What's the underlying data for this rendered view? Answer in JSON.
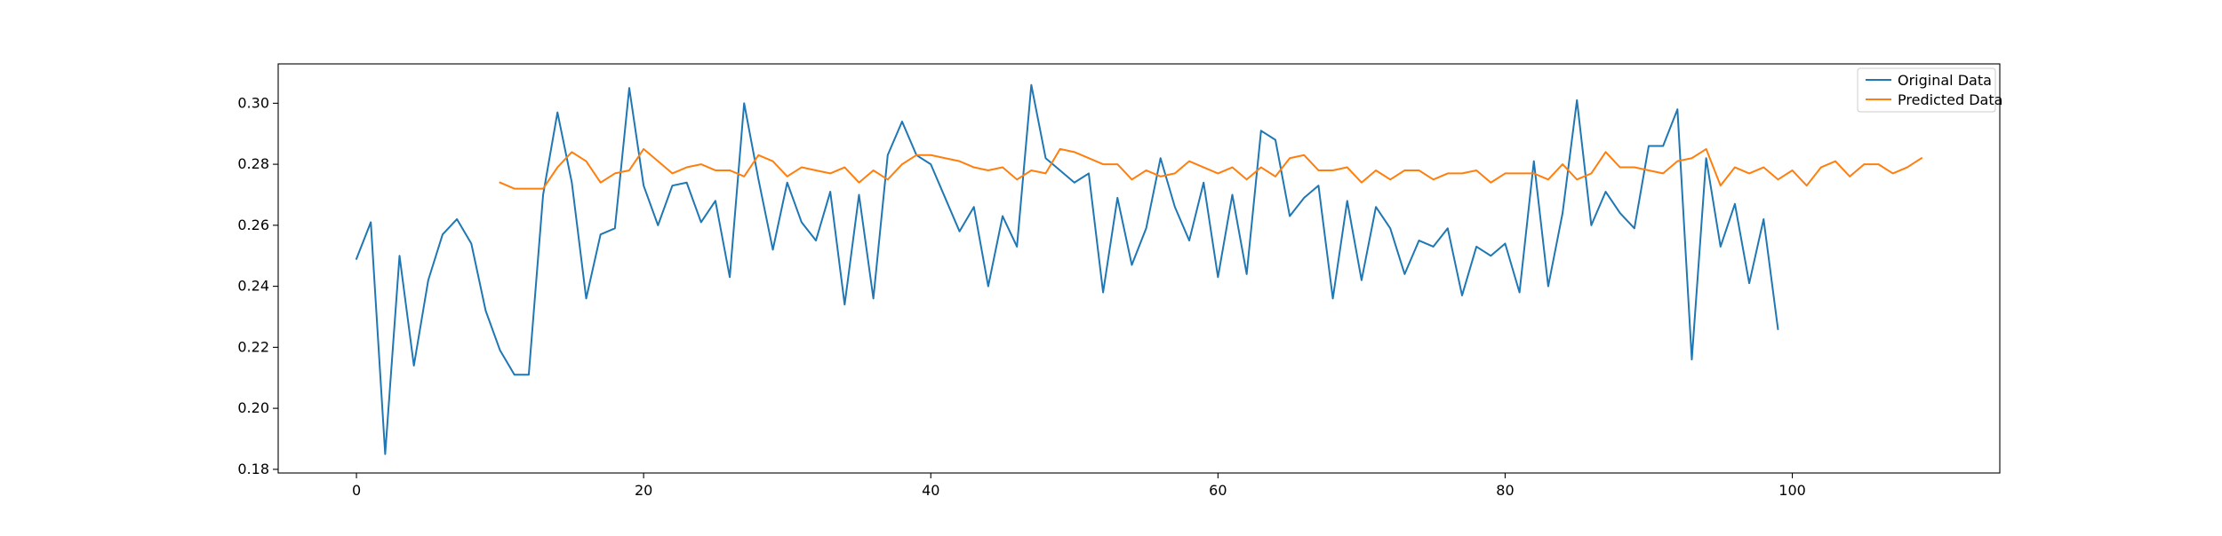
{
  "chart_data": {
    "type": "line",
    "title": "",
    "xlabel": "",
    "ylabel": "",
    "xlim": [
      -5.45,
      114.45
    ],
    "ylim": [
      0.1788,
      0.3129
    ],
    "xticks": [
      0,
      20,
      40,
      60,
      80,
      100
    ],
    "yticks": [
      0.18,
      0.2,
      0.22,
      0.24,
      0.26,
      0.28,
      0.3
    ],
    "ytick_labels": [
      "0.18",
      "0.20",
      "0.22",
      "0.24",
      "0.26",
      "0.28",
      "0.30"
    ],
    "grid": false,
    "legend": {
      "placement": "top-right"
    },
    "series": [
      {
        "name": "Original Data",
        "color": "#1f77b4",
        "x_start": 0,
        "values": [
          0.249,
          0.261,
          0.185,
          0.25,
          0.214,
          0.242,
          0.257,
          0.262,
          0.254,
          0.232,
          0.219,
          0.211,
          0.211,
          0.27,
          0.297,
          0.274,
          0.236,
          0.257,
          0.259,
          0.305,
          0.273,
          0.26,
          0.273,
          0.274,
          0.261,
          0.268,
          0.243,
          0.3,
          0.275,
          0.252,
          0.274,
          0.261,
          0.255,
          0.271,
          0.234,
          0.27,
          0.236,
          0.283,
          0.294,
          0.283,
          0.28,
          0.269,
          0.258,
          0.266,
          0.24,
          0.263,
          0.253,
          0.306,
          0.282,
          0.278,
          0.274,
          0.277,
          0.238,
          0.269,
          0.247,
          0.259,
          0.282,
          0.266,
          0.255,
          0.274,
          0.243,
          0.27,
          0.244,
          0.291,
          0.288,
          0.263,
          0.269,
          0.273,
          0.236,
          0.268,
          0.242,
          0.266,
          0.259,
          0.244,
          0.255,
          0.253,
          0.259,
          0.237,
          0.253,
          0.25,
          0.254,
          0.238,
          0.281,
          0.24,
          0.264,
          0.301,
          0.26,
          0.271,
          0.264,
          0.259,
          0.286,
          0.286,
          0.298,
          0.216,
          0.282,
          0.253,
          0.267,
          0.241,
          0.262,
          0.226
        ]
      },
      {
        "name": "Predicted Data",
        "color": "#ff7f0e",
        "x_start": 10,
        "values": [
          0.274,
          0.272,
          0.272,
          0.272,
          0.279,
          0.284,
          0.281,
          0.274,
          0.277,
          0.278,
          0.285,
          0.281,
          0.277,
          0.279,
          0.28,
          0.278,
          0.278,
          0.276,
          0.283,
          0.281,
          0.276,
          0.279,
          0.278,
          0.277,
          0.279,
          0.274,
          0.278,
          0.275,
          0.28,
          0.283,
          0.283,
          0.282,
          0.281,
          0.279,
          0.278,
          0.279,
          0.275,
          0.278,
          0.277,
          0.285,
          0.284,
          0.282,
          0.28,
          0.28,
          0.275,
          0.278,
          0.276,
          0.277,
          0.281,
          0.279,
          0.277,
          0.279,
          0.275,
          0.279,
          0.276,
          0.282,
          0.283,
          0.278,
          0.278,
          0.279,
          0.274,
          0.278,
          0.275,
          0.278,
          0.278,
          0.275,
          0.277,
          0.277,
          0.278,
          0.274,
          0.277,
          0.277,
          0.277,
          0.275,
          0.28,
          0.275,
          0.277,
          0.284,
          0.279,
          0.279,
          0.278,
          0.277,
          0.281,
          0.282,
          0.285,
          0.273,
          0.279,
          0.277,
          0.279,
          0.275,
          0.278,
          0.273,
          0.279,
          0.281,
          0.276,
          0.28,
          0.28,
          0.277,
          0.279,
          0.282
        ]
      }
    ]
  }
}
